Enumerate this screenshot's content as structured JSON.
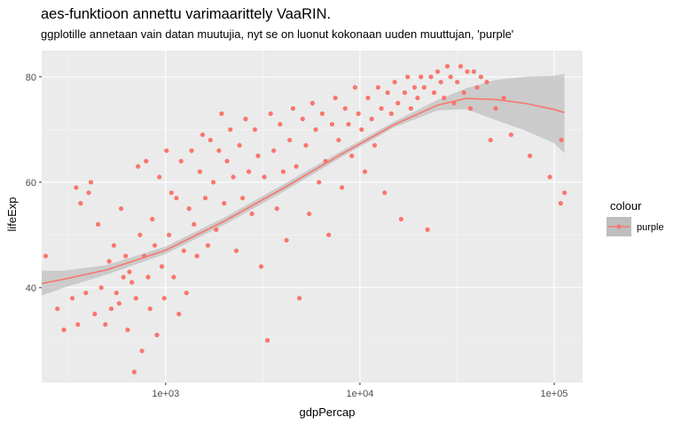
{
  "title": "aes-funktioon annettu varimaarittely VaaRIN.",
  "subtitle": "ggplotille annetaan vain datan muutujia, nyt se on luonut kokonaan uuden muuttujan, 'purple'",
  "colors": {
    "panel_bg": "#EBEBEB",
    "grid_major": "#FFFFFF",
    "point": "#F8766D",
    "ribbon": "#BEBEBE",
    "axis_text": "#4D4D4D"
  },
  "chart_data": {
    "type": "scatter",
    "x_scale": "log10",
    "xlabel": "gdpPercap",
    "ylabel": "lifeExp",
    "xlim": [
      230,
      140000
    ],
    "ylim": [
      22,
      85
    ],
    "x_ticks": [
      1000,
      10000,
      100000
    ],
    "x_tick_labels": [
      "1e+03",
      "1e+04",
      "1e+05"
    ],
    "y_ticks": [
      40,
      60,
      80
    ],
    "y_tick_labels": [
      "40",
      "60",
      "80"
    ],
    "grid": true,
    "legend": {
      "title": "colour",
      "entries": [
        "purple"
      ],
      "position": "right"
    },
    "series": [
      {
        "name": "purple",
        "point_count": 1704,
        "points": [
          [
            241,
            46
          ],
          [
            277,
            36
          ],
          [
            299,
            32
          ],
          [
            331,
            38
          ],
          [
            346,
            59
          ],
          [
            353,
            33
          ],
          [
            365,
            56
          ],
          [
            388,
            39
          ],
          [
            402,
            58
          ],
          [
            412,
            60
          ],
          [
            431,
            35
          ],
          [
            449,
            52
          ],
          [
            466,
            40
          ],
          [
            489,
            33
          ],
          [
            512,
            45
          ],
          [
            525,
            36
          ],
          [
            541,
            48
          ],
          [
            558,
            39
          ],
          [
            576,
            37
          ],
          [
            590,
            55
          ],
          [
            606,
            42
          ],
          [
            622,
            46
          ],
          [
            637,
            32
          ],
          [
            651,
            43
          ],
          [
            670,
            41
          ],
          [
            689,
            24
          ],
          [
            703,
            38
          ],
          [
            721,
            63
          ],
          [
            738,
            50
          ],
          [
            755,
            28
          ],
          [
            776,
            46
          ],
          [
            793,
            64
          ],
          [
            812,
            42
          ],
          [
            832,
            36
          ],
          [
            854,
            53
          ],
          [
            878,
            48
          ],
          [
            902,
            31
          ],
          [
            928,
            61
          ],
          [
            955,
            44
          ],
          [
            983,
            38
          ],
          [
            1010,
            66
          ],
          [
            1040,
            50
          ],
          [
            1070,
            58
          ],
          [
            1100,
            42
          ],
          [
            1135,
            57
          ],
          [
            1170,
            35
          ],
          [
            1200,
            64
          ],
          [
            1240,
            47
          ],
          [
            1280,
            39
          ],
          [
            1320,
            55
          ],
          [
            1360,
            66
          ],
          [
            1400,
            52
          ],
          [
            1450,
            46
          ],
          [
            1500,
            62
          ],
          [
            1550,
            69
          ],
          [
            1600,
            57
          ],
          [
            1650,
            48
          ],
          [
            1700,
            68
          ],
          [
            1760,
            60
          ],
          [
            1820,
            51
          ],
          [
            1880,
            66
          ],
          [
            1940,
            73
          ],
          [
            2000,
            56
          ],
          [
            2070,
            64
          ],
          [
            2150,
            70
          ],
          [
            2230,
            61
          ],
          [
            2310,
            47
          ],
          [
            2400,
            67
          ],
          [
            2490,
            57
          ],
          [
            2580,
            72
          ],
          [
            2680,
            62
          ],
          [
            2780,
            54
          ],
          [
            2880,
            70
          ],
          [
            2990,
            65
          ],
          [
            3100,
            44
          ],
          [
            3220,
            61
          ],
          [
            3340,
            30
          ],
          [
            3470,
            73
          ],
          [
            3600,
            66
          ],
          [
            3740,
            55
          ],
          [
            3880,
            71
          ],
          [
            4030,
            62
          ],
          [
            4190,
            49
          ],
          [
            4350,
            68
          ],
          [
            4520,
            74
          ],
          [
            4700,
            63
          ],
          [
            4880,
            38
          ],
          [
            5070,
            72
          ],
          [
            5270,
            67
          ],
          [
            5480,
            54
          ],
          [
            5700,
            75
          ],
          [
            5920,
            70
          ],
          [
            6150,
            60
          ],
          [
            6400,
            73
          ],
          [
            6650,
            64
          ],
          [
            6910,
            50
          ],
          [
            7190,
            71
          ],
          [
            7470,
            76
          ],
          [
            7770,
            68
          ],
          [
            8080,
            59
          ],
          [
            8400,
            74
          ],
          [
            8730,
            71
          ],
          [
            9080,
            65
          ],
          [
            9440,
            78
          ],
          [
            9820,
            73
          ],
          [
            10200,
            70
          ],
          [
            10600,
            62
          ],
          [
            11000,
            76
          ],
          [
            11500,
            72
          ],
          [
            11900,
            67
          ],
          [
            12400,
            78
          ],
          [
            12900,
            74
          ],
          [
            13400,
            58
          ],
          [
            13900,
            77
          ],
          [
            14500,
            73
          ],
          [
            15100,
            79
          ],
          [
            15700,
            75
          ],
          [
            16300,
            53
          ],
          [
            17000,
            77
          ],
          [
            17600,
            80
          ],
          [
            18300,
            74
          ],
          [
            19100,
            78
          ],
          [
            19800,
            76
          ],
          [
            20600,
            80
          ],
          [
            21400,
            78
          ],
          [
            22300,
            51
          ],
          [
            23200,
            80
          ],
          [
            24100,
            77
          ],
          [
            25100,
            81
          ],
          [
            26100,
            79
          ],
          [
            27100,
            76
          ],
          [
            28200,
            82
          ],
          [
            29300,
            80
          ],
          [
            30500,
            75
          ],
          [
            31700,
            79
          ],
          [
            33000,
            82
          ],
          [
            34300,
            77
          ],
          [
            35700,
            81
          ],
          [
            37100,
            74
          ],
          [
            38600,
            81
          ],
          [
            40100,
            78
          ],
          [
            42000,
            80
          ],
          [
            45000,
            79
          ],
          [
            47000,
            68
          ],
          [
            50000,
            74
          ],
          [
            55000,
            76
          ],
          [
            60000,
            69
          ],
          [
            75000,
            65
          ],
          [
            95000,
            61
          ],
          [
            108000,
            56
          ],
          [
            113000,
            58
          ],
          [
            109000,
            68
          ]
        ],
        "smooth": {
          "x": [
            230,
            300,
            500,
            1000,
            2000,
            4000,
            8000,
            15000,
            25000,
            35000,
            50000,
            70000,
            100000,
            113000
          ],
          "y": [
            40.8,
            41.6,
            43.4,
            47.1,
            52.6,
            58.8,
            65.3,
            70.9,
            74.6,
            75.9,
            75.7,
            75.0,
            73.8,
            73.2
          ],
          "lower": [
            38.5,
            40.0,
            42.5,
            46.4,
            51.9,
            58.1,
            64.7,
            70.4,
            73.6,
            73.9,
            71.8,
            69.9,
            67.4,
            65.5
          ],
          "upper": [
            43.2,
            43.2,
            44.3,
            47.8,
            53.3,
            59.5,
            65.9,
            71.5,
            75.6,
            77.8,
            79.4,
            80.0,
            80.2,
            80.6
          ]
        }
      }
    ]
  }
}
